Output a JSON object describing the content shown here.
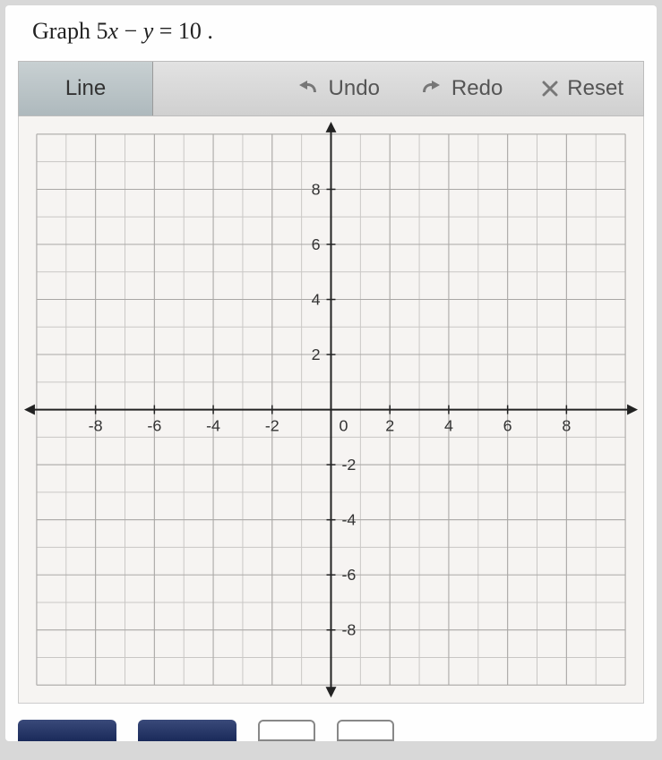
{
  "question": {
    "prefix": "Graph ",
    "expr_a": "5",
    "expr_x": "x",
    "minus": " − ",
    "expr_y": "y",
    "eq": " = ",
    "expr_b": "10",
    "suffix": " ."
  },
  "toolbar": {
    "line_label": "Line",
    "undo_label": "Undo",
    "redo_label": "Redo",
    "reset_label": "Reset"
  },
  "graph": {
    "type": "coordinate-grid",
    "xlim": [
      -10,
      10
    ],
    "ylim": [
      -10,
      10
    ],
    "minor_step": 1,
    "major_step": 2,
    "x_tick_labels": [
      "-8",
      "-6",
      "-4",
      "-2",
      "0",
      "2",
      "4",
      "6",
      "8"
    ],
    "x_tick_values": [
      -8,
      -6,
      -4,
      -2,
      0,
      2,
      4,
      6,
      8
    ],
    "y_tick_labels_pos": [
      "2",
      "4",
      "6",
      "8"
    ],
    "y_tick_values_pos": [
      2,
      4,
      6,
      8
    ],
    "y_tick_labels_neg": [
      "-2",
      "-4",
      "-6",
      "-8"
    ],
    "y_tick_values_neg": [
      -2,
      -4,
      -6,
      -8
    ],
    "background_color": "#f6f4f2",
    "minor_grid_color": "#c9c7c5",
    "major_grid_color": "#a9a7a5",
    "axis_color": "#222222",
    "tick_label_color": "#333333",
    "tick_fontsize": 18,
    "axis_width": 2,
    "svg_size": 700,
    "margin": 20
  },
  "colors": {
    "page_bg": "#d8d8d8",
    "toolbar_text": "#555555"
  }
}
